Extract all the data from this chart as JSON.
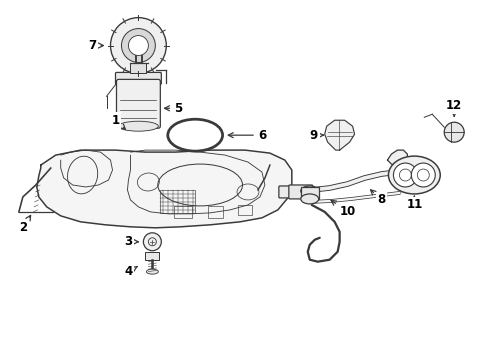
{
  "background_color": "#ffffff",
  "line_color": "#3a3a3a",
  "label_color": "#000000",
  "figsize": [
    4.9,
    3.6
  ],
  "dpi": 100
}
